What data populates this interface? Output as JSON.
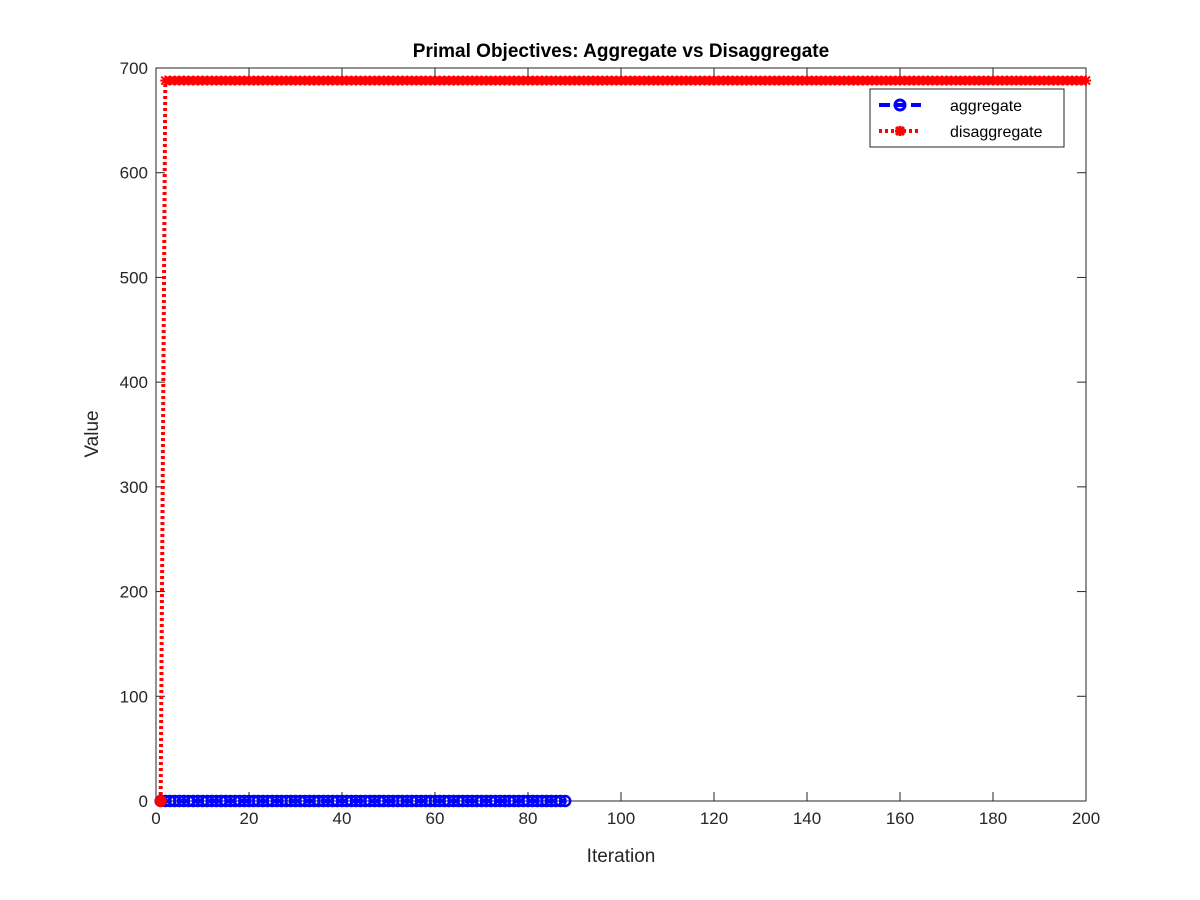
{
  "chart_data": {
    "type": "line",
    "title": "Primal Objectives: Aggregate vs Disaggregate",
    "xlabel": "Iteration",
    "ylabel": "Value",
    "xlim": [
      0,
      200
    ],
    "ylim": [
      0,
      700
    ],
    "xticks": [
      0,
      20,
      40,
      60,
      80,
      100,
      120,
      140,
      160,
      180,
      200
    ],
    "yticks": [
      0,
      100,
      200,
      300,
      400,
      500,
      600,
      700
    ],
    "xtick_labels": [
      "0",
      "20",
      "40",
      "60",
      "80",
      "100",
      "120",
      "140",
      "160",
      "180",
      "200"
    ],
    "ytick_labels": [
      "0",
      "100",
      "200",
      "300",
      "400",
      "500",
      "600",
      "700"
    ],
    "grid": false,
    "legend_position": "top-right",
    "series": [
      {
        "name": "aggregate",
        "color": "#0000ff",
        "line_style": "dashed",
        "marker": "circle",
        "x_range": [
          1,
          88
        ],
        "value": 0
      },
      {
        "name": "disaggregate",
        "color": "#ff0000",
        "line_style": "dotted",
        "marker": "asterisk",
        "points": [
          [
            1,
            0
          ],
          [
            2,
            688
          ]
        ],
        "x_range": [
          2,
          200
        ],
        "value": 688
      }
    ]
  }
}
